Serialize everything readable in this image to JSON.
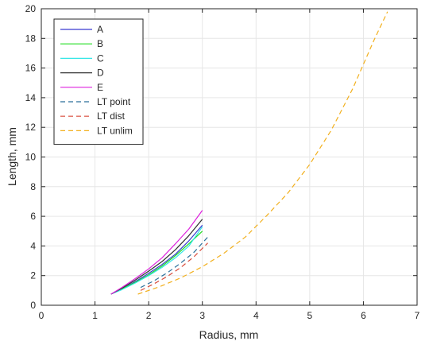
{
  "chart_data": {
    "type": "line",
    "title": "",
    "xlabel": "Radius, mm",
    "ylabel": "Length, mm",
    "xlim": [
      0,
      7
    ],
    "ylim": [
      0,
      20
    ],
    "xticks": [
      0,
      1,
      2,
      3,
      4,
      5,
      6,
      7
    ],
    "yticks": [
      0,
      2,
      4,
      6,
      8,
      10,
      12,
      14,
      16,
      18,
      20
    ],
    "grid": true,
    "legend_position": "top-left",
    "series": [
      {
        "name": "A",
        "color": "#3b3bd0",
        "style": "solid",
        "x": [
          1.3,
          1.5,
          1.75,
          2.0,
          2.25,
          2.5,
          2.75,
          3.0
        ],
        "y": [
          0.75,
          1.1,
          1.6,
          2.15,
          2.75,
          3.45,
          4.35,
          5.4
        ]
      },
      {
        "name": "B",
        "color": "#22dd22",
        "style": "solid",
        "x": [
          1.3,
          1.5,
          1.75,
          2.0,
          2.25,
          2.5,
          2.75,
          3.0
        ],
        "y": [
          0.75,
          1.1,
          1.55,
          2.05,
          2.65,
          3.35,
          4.15,
          5.0
        ]
      },
      {
        "name": "C",
        "color": "#33e6e6",
        "style": "solid",
        "x": [
          1.3,
          1.5,
          1.75,
          2.0,
          2.25,
          2.5,
          2.75,
          3.0
        ],
        "y": [
          0.75,
          1.05,
          1.5,
          2.0,
          2.55,
          3.2,
          4.0,
          5.3
        ]
      },
      {
        "name": "D",
        "color": "#303030",
        "style": "solid",
        "x": [
          1.3,
          1.5,
          1.75,
          2.0,
          2.25,
          2.5,
          2.75,
          3.0
        ],
        "y": [
          0.75,
          1.15,
          1.7,
          2.3,
          2.95,
          3.75,
          4.7,
          5.8
        ]
      },
      {
        "name": "E",
        "color": "#dd22dd",
        "style": "solid",
        "x": [
          1.3,
          1.5,
          1.75,
          2.0,
          2.25,
          2.5,
          2.75,
          3.0
        ],
        "y": [
          0.75,
          1.2,
          1.8,
          2.45,
          3.2,
          4.15,
          5.15,
          6.4
        ]
      },
      {
        "name": "LT point",
        "color": "#2b6f9a",
        "style": "dashed",
        "x": [
          1.85,
          2.1,
          2.35,
          2.6,
          2.85,
          3.1
        ],
        "y": [
          1.2,
          1.65,
          2.2,
          2.85,
          3.6,
          4.6
        ]
      },
      {
        "name": "LT dist",
        "color": "#d84a3a",
        "style": "dashed",
        "x": [
          1.85,
          2.1,
          2.35,
          2.6,
          2.85,
          3.1
        ],
        "y": [
          1.0,
          1.45,
          1.95,
          2.55,
          3.3,
          4.2
        ]
      },
      {
        "name": "LT unlim",
        "color": "#f2b01e",
        "style": "dashed",
        "x": [
          1.8,
          2.2,
          2.6,
          3.0,
          3.4,
          3.8,
          4.2,
          4.6,
          5.0,
          5.4,
          5.8,
          6.2,
          6.45
        ],
        "y": [
          0.75,
          1.25,
          1.85,
          2.6,
          3.5,
          4.6,
          6.05,
          7.6,
          9.5,
          11.8,
          14.6,
          17.9,
          19.8
        ]
      }
    ]
  }
}
